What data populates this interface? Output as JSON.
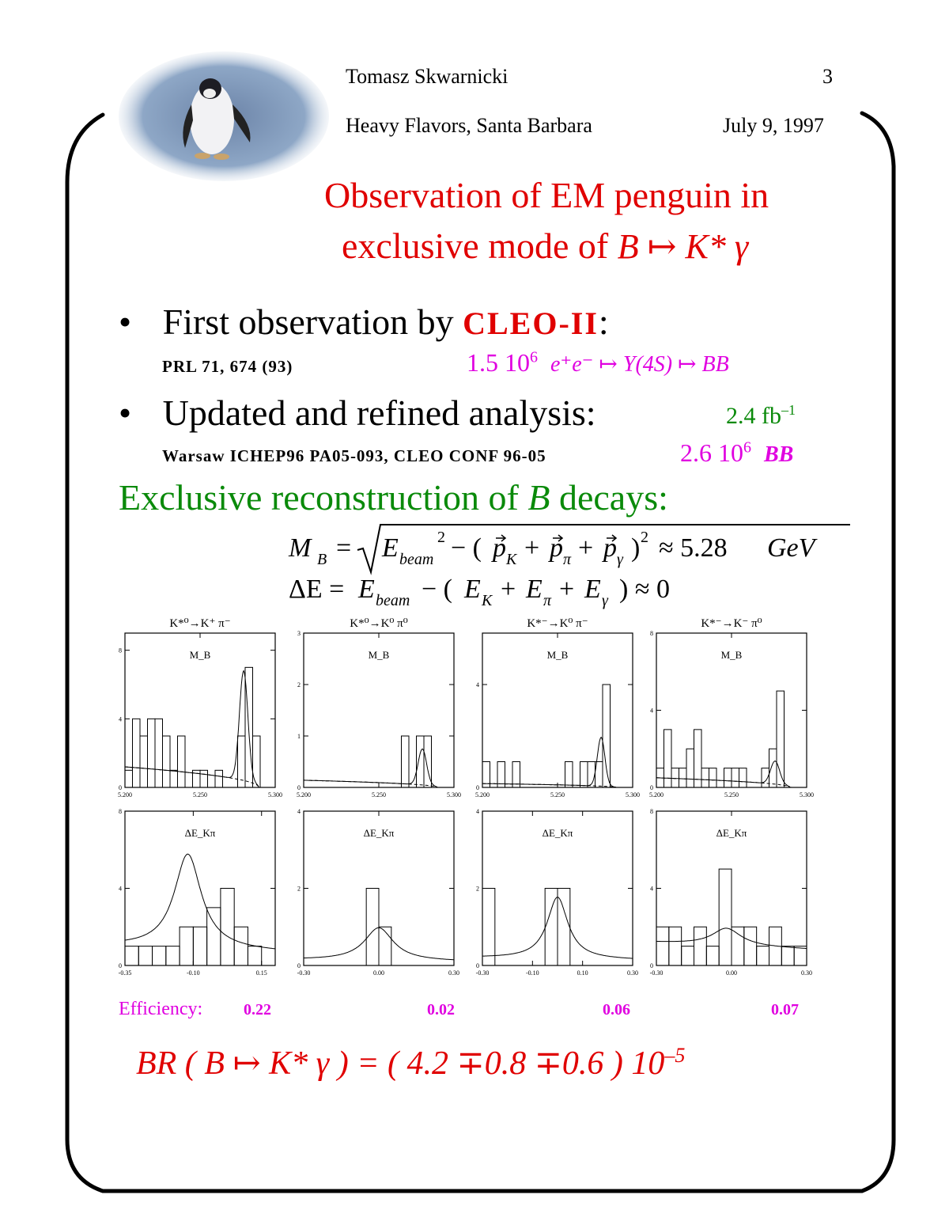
{
  "header": {
    "author": "Tomasz Skwarnicki",
    "page_number": "3",
    "conference": "Heavy Flavors, Santa Barbara",
    "date": "July 9, 1997"
  },
  "title": {
    "line1": "Observation of EM penguin in",
    "line2_text": "exclusive mode of",
    "line2_formula": "B ↦ K* γ"
  },
  "bullets": [
    {
      "marker": "•",
      "text": "First observation by",
      "highlight": "CLEO-II",
      "suffix": ":",
      "ref": "PRL 71, 674 (93)",
      "stat_number": "1.5 10",
      "stat_exp": "6",
      "stat_formula": "e⁺e⁻ ↦ Υ(4S) ↦ BB"
    },
    {
      "marker": "•",
      "text": "Updated and refined analysis:",
      "lumi": "2.4 fb",
      "lumi_exp": "–1",
      "ref": "Warsaw ICHEP96 PA05-093, CLEO CONF 96-05",
      "stat_number": "2.6 10",
      "stat_exp": "6",
      "stat_formula": "BB"
    }
  ],
  "exclusive": {
    "text": "Exclusive reconstruction of",
    "var": "B",
    "suffix": "decays:"
  },
  "equations": {
    "mb_lhs": "M",
    "mb_sub": "B",
    "mb_eq": "=",
    "e_beam": "E",
    "beam_sub": "beam",
    "sq": "2",
    "mb_mid": "− (",
    "pk": "p",
    "k_sub": "K",
    "plus": "+",
    "pp": "p",
    "pi_sub": "π",
    "pg": "p",
    "g_sub": "γ",
    "close_sq": ")",
    "approx_mb": "≈ 5.28",
    "unit": "GeV",
    "de_lhs": "ΔE =",
    "de_mid": "− (",
    "ek": "E",
    "epi": "E",
    "eg": "E",
    "approx_de": ") ≈ 0"
  },
  "efficiency": {
    "label": "Efficiency:",
    "values": [
      "0.22",
      "0.02",
      "0.06",
      "0.07"
    ]
  },
  "result": {
    "text": "BR ( B ↦ K* γ ) = ( 4.2 ∓0.8 ∓0.6 ) 10",
    "exp": "–5"
  },
  "chart_data": [
    {
      "type": "bar",
      "panel": "MB",
      "column_title": "K*⁰→K⁺ π⁻",
      "label": "M_B",
      "xlim": [
        5.2,
        5.3
      ],
      "ylim": [
        0,
        9
      ],
      "xticks": [
        "5.200",
        "5.250",
        "5.300"
      ],
      "yticks": [
        "0",
        "4",
        "8"
      ],
      "bin_edges": [
        5.2,
        5.205,
        5.21,
        5.215,
        5.22,
        5.225,
        5.23,
        5.235,
        5.24,
        5.245,
        5.25,
        5.255,
        5.26,
        5.265,
        5.27,
        5.275,
        5.28,
        5.285,
        5.29
      ],
      "counts": [
        1,
        4,
        3,
        4,
        4,
        3,
        1,
        3,
        0,
        1,
        1,
        0,
        1,
        0,
        0,
        3,
        7,
        3
      ],
      "peak": {
        "mean": 5.279,
        "sigma": 0.0028,
        "amp": 6.4,
        "bkg_level": 1.2
      }
    },
    {
      "type": "bar",
      "panel": "MB",
      "column_title": "K*⁰→K⁰ π⁰",
      "label": "M_B",
      "xlim": [
        5.2,
        5.3
      ],
      "ylim": [
        0,
        3
      ],
      "xticks": [
        "5.200",
        "5.250",
        "5.300"
      ],
      "yticks": [
        "0",
        "1",
        "2",
        "3"
      ],
      "bin_edges": [
        5.265,
        5.27,
        5.275,
        5.28,
        5.285
      ],
      "counts": [
        1,
        0,
        1,
        1
      ],
      "peak": {
        "mean": 5.279,
        "sigma": 0.0028,
        "amp": 0.7,
        "bkg_level": 0.14
      }
    },
    {
      "type": "bar",
      "panel": "MB",
      "column_title": "K*⁻→K⁰ π⁻",
      "label": "M_B",
      "xlim": [
        5.2,
        5.3
      ],
      "ylim": [
        0,
        6
      ],
      "xticks": [
        "5.200",
        "5.250",
        "5.300"
      ],
      "yticks": [
        "0",
        "4"
      ],
      "bin_edges": [
        5.2,
        5.205,
        5.21,
        5.215,
        5.22,
        5.225,
        5.23,
        5.235,
        5.24,
        5.245,
        5.25,
        5.255,
        5.26,
        5.265,
        5.27,
        5.275,
        5.28,
        5.285
      ],
      "counts": [
        1,
        0,
        1,
        0,
        1,
        0,
        0,
        0,
        0,
        0,
        0,
        1,
        0,
        1,
        1,
        1,
        4
      ],
      "peak": {
        "mean": 5.279,
        "sigma": 0.0025,
        "amp": 1.9,
        "bkg_level": 0.15
      }
    },
    {
      "type": "bar",
      "panel": "MB",
      "column_title": "K*⁻→K⁻ π⁰",
      "label": "M_B",
      "xlim": [
        5.2,
        5.3
      ],
      "ylim": [
        0,
        8
      ],
      "xticks": [
        "5.200",
        "5.250",
        "5.300"
      ],
      "yticks": [
        "0",
        "4",
        "8"
      ],
      "bin_edges": [
        5.2,
        5.205,
        5.21,
        5.215,
        5.22,
        5.225,
        5.23,
        5.235,
        5.24,
        5.245,
        5.25,
        5.255,
        5.26,
        5.265,
        5.27,
        5.275,
        5.28,
        5.285
      ],
      "counts": [
        1,
        3,
        1,
        1,
        2,
        3,
        1,
        1,
        0,
        1,
        1,
        1,
        0,
        0,
        1,
        2,
        5
      ],
      "peak": {
        "mean": 5.279,
        "sigma": 0.003,
        "amp": 1.2,
        "bkg_level": 0.5
      }
    },
    {
      "type": "bar",
      "panel": "DE",
      "label": "ΔE_Kπ",
      "xlim": [
        -0.35,
        0.2
      ],
      "ylim": [
        0,
        8
      ],
      "xticks": [
        "-0.35",
        "-0.10",
        "0.15"
      ],
      "yticks": [
        "0",
        "4",
        "8"
      ],
      "bin_edges": [
        -0.35,
        -0.3,
        -0.25,
        -0.2,
        -0.15,
        -0.1,
        -0.05,
        0.0,
        0.05,
        0.1,
        0.15
      ],
      "counts": [
        1,
        1,
        1,
        1,
        2,
        2,
        3,
        4,
        2,
        1
      ],
      "peak": {
        "mean": -0.12,
        "sigma": 0.06,
        "amp": 4.9,
        "bkg_level": 1.0
      }
    },
    {
      "type": "bar",
      "panel": "DE",
      "label": "ΔE_Kπ",
      "xlim": [
        -0.3,
        0.3
      ],
      "ylim": [
        0,
        4
      ],
      "xticks": [
        "-0.30",
        "0.00",
        "0.30"
      ],
      "yticks": [
        "0",
        "2",
        "4"
      ],
      "bin_edges": [
        -0.05,
        0.0,
        0.05
      ],
      "counts": [
        2,
        1
      ],
      "peak": {
        "mean": 0.0,
        "sigma": 0.07,
        "amp": 0.85,
        "bkg_level": 0.15
      }
    },
    {
      "type": "bar",
      "panel": "DE",
      "label": "ΔE_Kπ",
      "xlim": [
        -0.3,
        0.3
      ],
      "ylim": [
        0,
        4
      ],
      "xticks": [
        "-0.30",
        "-0.10",
        "0.10",
        "0.30"
      ],
      "yticks": [
        "0",
        "2",
        "4"
      ],
      "bin_edges": [
        -0.3,
        -0.25,
        -0.2,
        -0.15,
        -0.1,
        -0.05,
        0.0,
        0.05,
        0.1,
        0.15,
        0.2,
        0.25,
        0.3
      ],
      "counts": [
        2,
        0,
        0,
        0,
        0,
        2,
        2,
        0,
        0,
        0,
        0,
        0
      ],
      "peak": {
        "mean": 0.0,
        "sigma": 0.05,
        "amp": 1.6,
        "bkg_level": 0.2
      }
    },
    {
      "type": "bar",
      "panel": "DE",
      "label": "ΔE_Kπ",
      "xlim": [
        -0.3,
        0.3
      ],
      "ylim": [
        0,
        8
      ],
      "xticks": [
        "-0.30",
        "0.00",
        "0.30"
      ],
      "yticks": [
        "0",
        "4",
        "8"
      ],
      "bin_edges": [
        -0.3,
        -0.25,
        -0.2,
        -0.15,
        -0.1,
        -0.05,
        0.0,
        0.05,
        0.1,
        0.15,
        0.2,
        0.25,
        0.3
      ],
      "counts": [
        2,
        2,
        1,
        2,
        1,
        5,
        2,
        2,
        1,
        2,
        1,
        1
      ],
      "peak": {
        "mean": -0.02,
        "sigma": 0.07,
        "amp": 0.9,
        "bkg_level": 1.2
      }
    }
  ]
}
